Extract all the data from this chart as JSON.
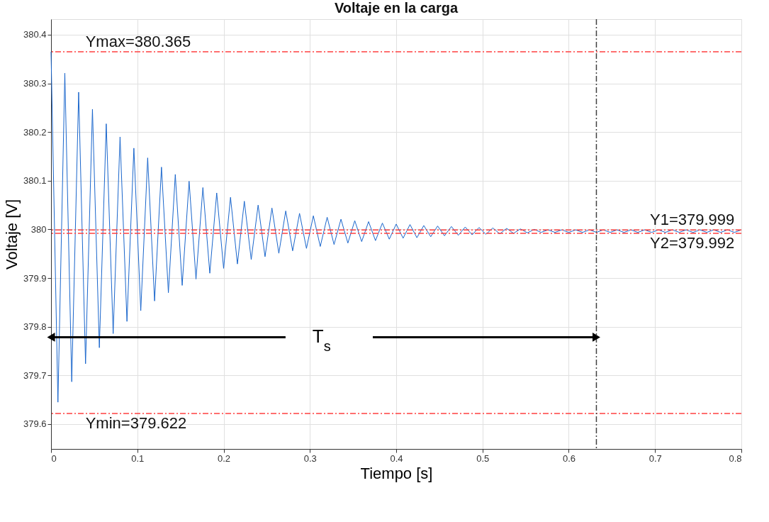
{
  "chart_data": {
    "type": "line",
    "title": "Voltaje en la carga",
    "xlabel": "Tiempo [s]",
    "ylabel": "Voltaje [V]",
    "x": [
      0,
      0.008,
      0.016,
      0.024,
      0.032,
      0.04,
      0.048,
      0.056,
      0.064,
      0.072,
      0.08,
      0.088,
      0.096,
      0.104,
      0.112,
      0.12,
      0.128,
      0.136,
      0.144,
      0.152,
      0.16,
      0.168,
      0.176,
      0.184,
      0.192,
      0.2,
      0.208,
      0.216,
      0.224,
      0.232,
      0.24,
      0.248,
      0.256,
      0.264,
      0.272,
      0.28,
      0.288,
      0.296,
      0.304,
      0.312,
      0.32,
      0.328,
      0.336,
      0.344,
      0.352,
      0.36,
      0.368,
      0.376,
      0.384,
      0.392,
      0.4,
      0.408,
      0.416,
      0.424,
      0.432,
      0.44,
      0.448,
      0.456,
      0.464,
      0.472,
      0.48,
      0.488,
      0.496,
      0.504,
      0.512,
      0.52,
      0.528,
      0.536,
      0.544,
      0.552,
      0.56,
      0.568,
      0.576,
      0.584,
      0.592,
      0.6,
      0.608,
      0.616,
      0.624,
      0.632,
      0.64,
      0.648,
      0.656,
      0.664,
      0.672,
      0.68,
      0.688,
      0.696,
      0.704,
      0.712,
      0.72,
      0.728,
      0.736,
      0.744,
      0.752,
      0.76,
      0.768,
      0.776,
      0.784,
      0.792,
      0.8
    ],
    "series": [
      {
        "color": "#1a66cc",
        "values": [
          380.365,
          379.645,
          380.321,
          379.687,
          380.282,
          379.724,
          380.247,
          379.757,
          380.217,
          379.786,
          380.19,
          379.811,
          380.167,
          379.833,
          380.147,
          379.853,
          380.128,
          379.87,
          380.113,
          379.885,
          380.099,
          379.898,
          380.086,
          379.91,
          380.075,
          379.92,
          380.066,
          379.929,
          380.058,
          379.938,
          380.05,
          379.944,
          380.044,
          379.951,
          380.038,
          379.956,
          380.033,
          379.961,
          380.028,
          379.965,
          380.025,
          379.969,
          380.021,
          379.972,
          380.018,
          379.975,
          380.016,
          379.977,
          380.013,
          379.98,
          380.011,
          379.982,
          380.01,
          379.983,
          380.008,
          379.985,
          380.007,
          379.987,
          380.006,
          379.988,
          380.005,
          379.989,
          380.004,
          379.99,
          380.003,
          379.991,
          380.002,
          379.992,
          380.001,
          379.993,
          380,
          379.994,
          379.999,
          379.994,
          379.999,
          379.994,
          379.999,
          379.994,
          379.999,
          379.994,
          379.999,
          379.994,
          379.999,
          379.994,
          379.999,
          379.994,
          379.999,
          379.994,
          379.999,
          379.994,
          379.999,
          379.994,
          379.999,
          379.994,
          379.999,
          379.994,
          379.999,
          379.994,
          379.999,
          379.994,
          379.999
        ]
      }
    ],
    "xlim": [
      0,
      0.8
    ],
    "xticks": [
      0,
      0.1,
      0.2,
      0.3,
      0.4,
      0.5,
      0.6,
      0.7,
      0.8
    ],
    "ylim": [
      379.549,
      380.432
    ],
    "yticks": [
      379.6,
      379.7,
      379.8,
      379.9,
      380,
      380.1,
      380.2,
      380.3,
      380.4
    ],
    "grid": true,
    "marker": "none",
    "line_style": "solid",
    "ref_lines": [
      {
        "axis": "y",
        "value": 380.365,
        "label": "Ymax=380.365",
        "color": "#ff4040",
        "line_style": "dashed"
      },
      {
        "axis": "y",
        "value": 379.999,
        "label": "Y1=379.999",
        "color": "#ff4040",
        "line_style": "dashed"
      },
      {
        "axis": "y",
        "value": 379.992,
        "label": "Y2=379.992",
        "color": "#ff4040",
        "line_style": "dashed"
      },
      {
        "axis": "y",
        "value": 379.622,
        "label": "Ymin=379.622",
        "color": "#ff4040",
        "line_style": "dashed"
      },
      {
        "axis": "x",
        "value": 0.632,
        "color": "#404040",
        "line_style": "dashed"
      }
    ],
    "annotations": [
      "T$_{s}$"
    ]
  }
}
